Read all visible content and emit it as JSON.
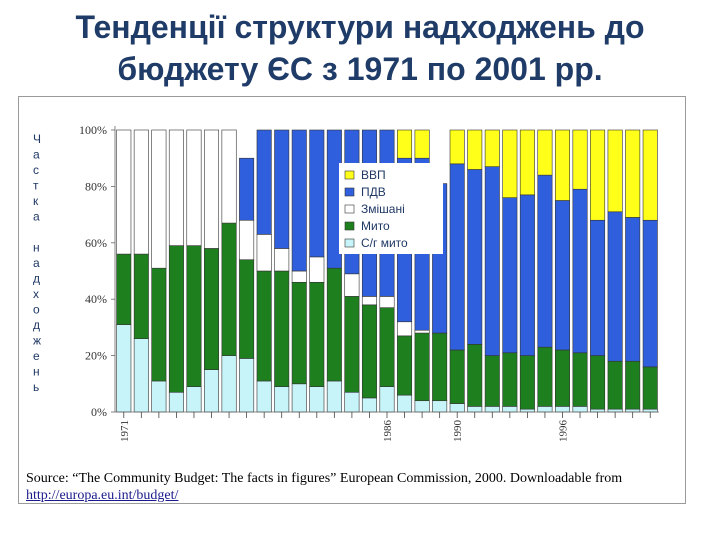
{
  "title": "Тенденції структури надходжень до бюджету ЄС з 1971 по 2001 рр.",
  "source": "Source: “The Community Budget: The facts in figures” European Commission, 2000. Downloadable from",
  "source_link": "http://europa.eu.int/budget/",
  "colors": {
    "gnp": "#ffff1a",
    "vat": "#2f5fdc",
    "mixed": "#ffffff",
    "duties": "#1e7f1e",
    "agri": "#c6f4f8"
  },
  "chart_data": {
    "type": "bar",
    "stacked": true,
    "y_axis_title": "Частка надходжень",
    "y_ticks": [
      "0%",
      "20%",
      "40%",
      "60%",
      "80%",
      "100%"
    ],
    "ylim": [
      0,
      100
    ],
    "x_tick_labels": [
      "1971",
      "1986",
      "1990",
      "1996"
    ],
    "legend_position": "top-center",
    "categories": [
      "1971",
      "1972",
      "1973",
      "1974",
      "1975",
      "1976",
      "1977",
      "1978",
      "1979",
      "1980",
      "1981",
      "1982",
      "1983",
      "1984",
      "1985",
      "1986",
      "1987",
      "1988",
      "1989",
      "1990",
      "1991",
      "1992",
      "1993",
      "1994",
      "1995",
      "1996",
      "1997",
      "1998",
      "1999",
      "2000",
      "2001"
    ],
    "series": [
      {
        "name": "С/г мито",
        "key": "agri",
        "values": [
          31,
          26,
          11,
          7,
          9,
          15,
          20,
          19,
          11,
          9,
          10,
          9,
          11,
          7,
          5,
          9,
          6,
          4,
          4,
          3,
          2,
          2,
          2,
          1,
          2,
          2,
          2,
          1,
          1,
          1,
          1
        ]
      },
      {
        "name": "Мито",
        "key": "duties",
        "values": [
          25,
          30,
          40,
          52,
          50,
          43,
          47,
          35,
          39,
          41,
          36,
          37,
          40,
          34,
          33,
          28,
          21,
          24,
          24,
          19,
          22,
          18,
          19,
          19,
          21,
          20,
          19,
          19,
          17,
          17,
          15
        ]
      },
      {
        "name": "Змішані",
        "key": "mixed",
        "values": [
          44,
          44,
          49,
          41,
          41,
          42,
          33,
          14,
          13,
          8,
          4,
          9,
          0,
          8,
          3,
          4,
          5,
          1,
          0,
          0,
          0,
          0,
          0,
          0,
          0,
          0,
          0,
          0,
          0,
          0,
          0
        ]
      },
      {
        "name": "ПДВ",
        "key": "vat",
        "values": [
          0,
          0,
          0,
          0,
          0,
          0,
          0,
          22,
          37,
          42,
          50,
          45,
          49,
          51,
          59,
          59,
          58,
          61,
          53,
          66,
          62,
          67,
          55,
          57,
          61,
          53,
          58,
          48,
          53,
          51,
          52
        ]
      },
      {
        "name": "ВВП",
        "key": "gnp",
        "values": [
          0,
          0,
          0,
          0,
          0,
          0,
          0,
          0,
          0,
          0,
          0,
          0,
          0,
          0,
          0,
          0,
          10,
          10,
          0,
          12,
          14,
          13,
          24,
          23,
          16,
          25,
          21,
          32,
          29,
          31,
          32
        ]
      }
    ]
  }
}
